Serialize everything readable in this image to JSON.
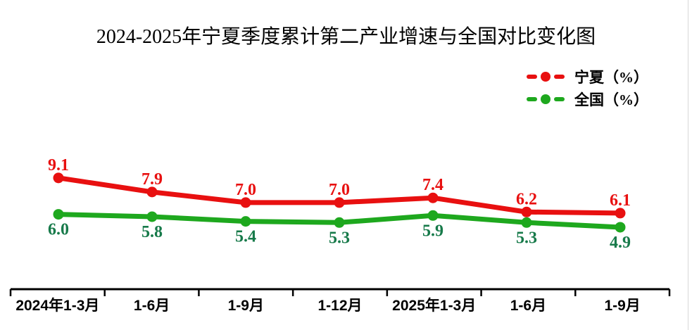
{
  "title": "2024-2025年宁夏季度累计第二产业增速与全国对比变化图",
  "legend": {
    "items": [
      {
        "label": "宁夏（%）",
        "color": "#e81010"
      },
      {
        "label": "全国（%）",
        "color": "#1ea81e"
      }
    ]
  },
  "chart_data": {
    "type": "line",
    "title": "2024-2025年宁夏季度累计第二产业增速与全国对比变化图",
    "categories": [
      "2024年1-3月",
      "1-6月",
      "1-9月",
      "1-12月",
      "2025年1-3月",
      "1-6月",
      "1-9月"
    ],
    "series": [
      {
        "name": "宁夏（%）",
        "values": [
          9.1,
          7.9,
          7.0,
          7.0,
          7.4,
          6.2,
          6.1
        ],
        "labels": [
          "9.1",
          "7.9",
          "7.0",
          "7.0",
          "7.4",
          "6.2",
          "6.1"
        ],
        "color": "#e81010",
        "label_color": "#e81010",
        "label_position": "above"
      },
      {
        "name": "全国（%）",
        "values": [
          6.0,
          5.8,
          5.4,
          5.3,
          5.9,
          5.3,
          4.9
        ],
        "labels": [
          "6.0",
          "5.8",
          "5.4",
          "5.3",
          "5.9",
          "5.3",
          "4.9"
        ],
        "color": "#1ea81e",
        "label_color": "#177a4a",
        "label_position": "below"
      }
    ],
    "xlabel": "",
    "ylabel": "",
    "grid": false,
    "legend_position": "top-right",
    "axis_color": "#000000",
    "marker": "circle",
    "data_labels_shown": true
  }
}
